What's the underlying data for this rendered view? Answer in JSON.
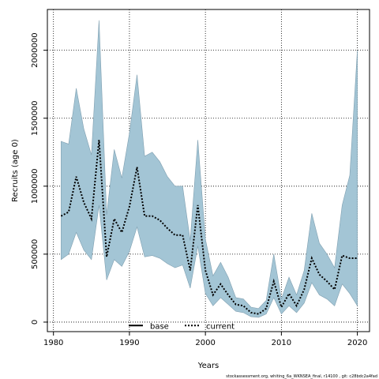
{
  "chart_data": {
    "type": "line",
    "title": "",
    "xlabel": "Years",
    "ylabel": "Recruits (age 0)",
    "xlim": [
      1979.2,
      2021.6
    ],
    "ylim": [
      -70000,
      2300000
    ],
    "xticks": [
      1980,
      1990,
      2000,
      2010,
      2020
    ],
    "yticks": [
      0,
      500000,
      1000000,
      1500000,
      2000000
    ],
    "grid": true,
    "legend_position": "bottom-center",
    "colors": {
      "band": "#a3c5d5",
      "band_edge": "#7f9fb0",
      "line": "#000000"
    },
    "series": [
      {
        "name": "base",
        "style": "solid"
      },
      {
        "name": "current",
        "style": "dotted",
        "x": [
          1981,
          1982,
          1983,
          1984,
          1985,
          1986,
          1987,
          1988,
          1989,
          1990,
          1991,
          1992,
          1993,
          1994,
          1995,
          1996,
          1997,
          1998,
          1999,
          2000,
          2001,
          2002,
          2003,
          2004,
          2005,
          2006,
          2007,
          2008,
          2009,
          2010,
          2011,
          2012,
          2013,
          2014,
          2015,
          2016,
          2017,
          2018,
          2019,
          2020
        ],
        "values": [
          780000,
          810000,
          1070000,
          880000,
          760000,
          1340000,
          480000,
          760000,
          660000,
          850000,
          1140000,
          780000,
          780000,
          750000,
          690000,
          640000,
          640000,
          380000,
          860000,
          380000,
          200000,
          280000,
          200000,
          130000,
          120000,
          70000,
          60000,
          100000,
          300000,
          110000,
          210000,
          120000,
          240000,
          470000,
          350000,
          300000,
          240000,
          490000,
          470000,
          470000
        ],
        "lower": [
          460000,
          500000,
          660000,
          530000,
          460000,
          860000,
          310000,
          460000,
          410000,
          520000,
          700000,
          480000,
          490000,
          470000,
          430000,
          400000,
          420000,
          250000,
          560000,
          210000,
          120000,
          180000,
          130000,
          80000,
          70000,
          40000,
          35000,
          60000,
          180000,
          60000,
          120000,
          70000,
          140000,
          290000,
          200000,
          170000,
          120000,
          280000,
          210000,
          120000
        ],
        "upper": [
          1330000,
          1310000,
          1720000,
          1420000,
          1230000,
          2220000,
          790000,
          1270000,
          1060000,
          1390000,
          1820000,
          1220000,
          1250000,
          1180000,
          1070000,
          1000000,
          1000000,
          600000,
          1340000,
          610000,
          340000,
          440000,
          330000,
          180000,
          170000,
          110000,
          100000,
          160000,
          500000,
          170000,
          330000,
          200000,
          380000,
          800000,
          580000,
          500000,
          400000,
          860000,
          1080000,
          2000000
        ]
      }
    ]
  },
  "footer": "stockassessment.org, whiting_6a_WKNSEA_final, r14100 , git: c28bdc2a4fad"
}
